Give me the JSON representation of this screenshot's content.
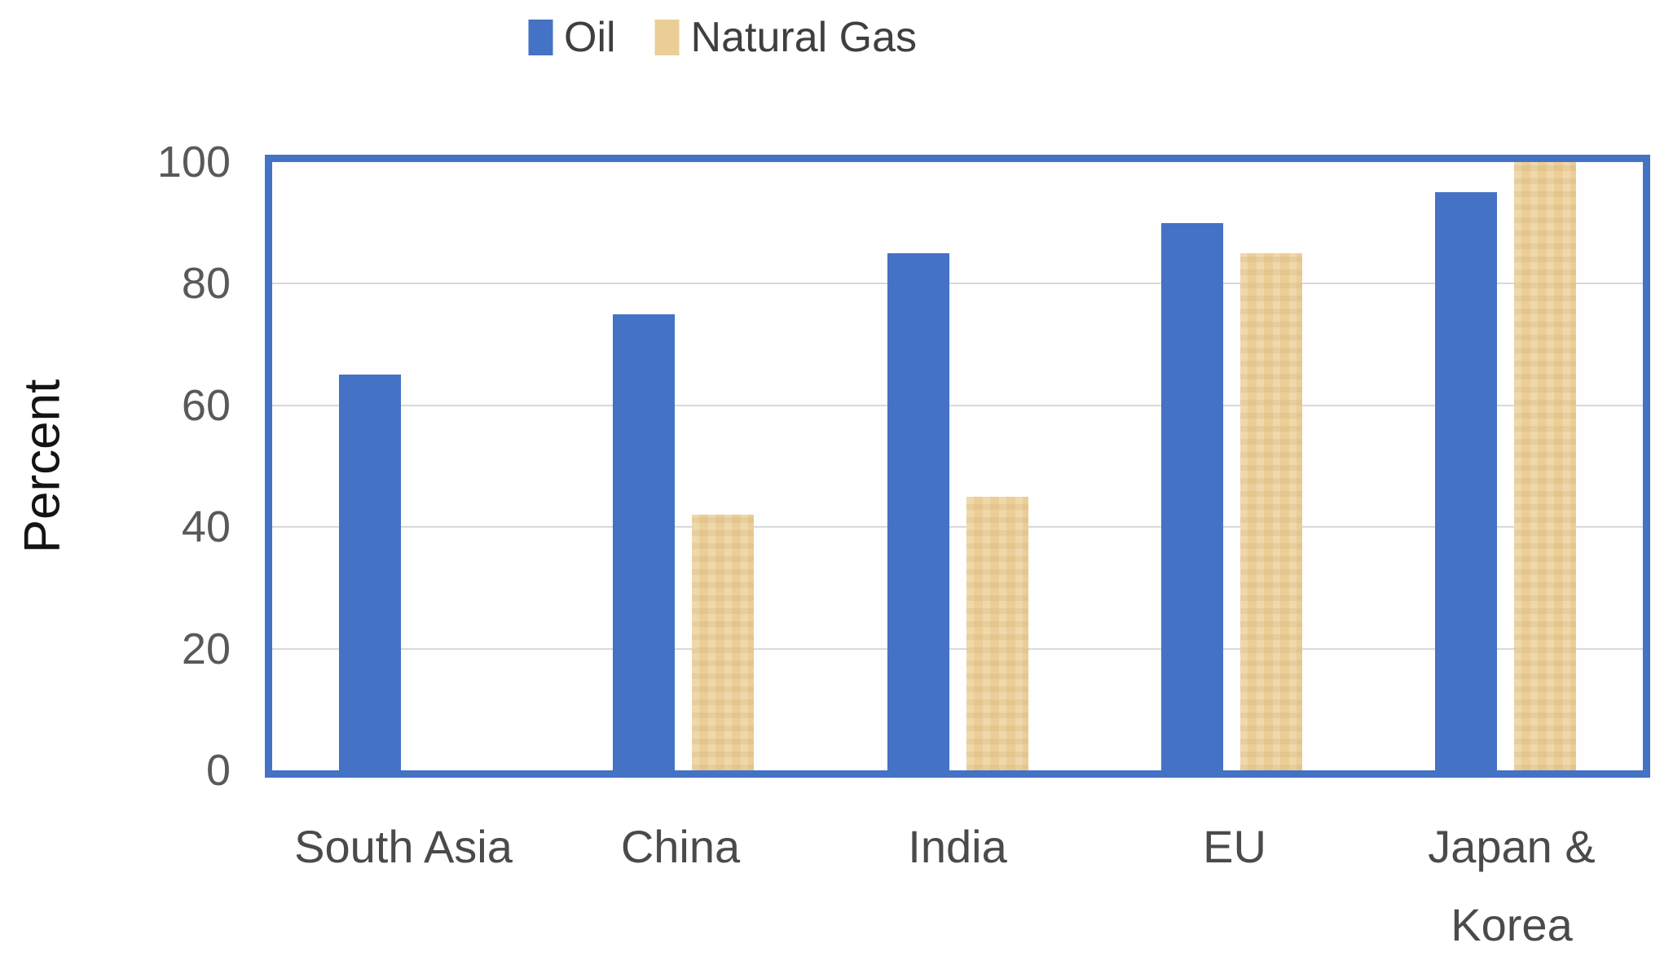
{
  "chart_data": {
    "type": "bar",
    "title": "",
    "ylabel": "Percent",
    "xlabel": "",
    "ylim": [
      0,
      100
    ],
    "yticks": [
      0,
      20,
      40,
      60,
      80,
      100
    ],
    "grid": true,
    "legend_position": "top-center",
    "categories": [
      "South Asia",
      "China",
      "India",
      "EU",
      "Japan & Korea"
    ],
    "category_display": [
      "South Asia",
      "China",
      "India",
      "EU",
      "Japan &\nKorea"
    ],
    "series": [
      {
        "name": "Oil",
        "color": "#4472C4",
        "values": [
          65,
          75,
          85,
          90,
          95
        ]
      },
      {
        "name": "Natural Gas",
        "color": "#EBCE97",
        "values": [
          null,
          42,
          45,
          85,
          100
        ]
      }
    ],
    "colors": {
      "plot_border": "#4472C4",
      "gridline": "#D9D9D9",
      "tick_label": "#595959",
      "category_label": "#4A4A4A",
      "axis_title": "#141414"
    }
  }
}
